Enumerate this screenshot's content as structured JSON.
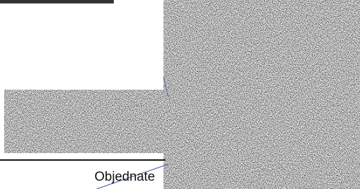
{
  "label": "Objednate"
}
